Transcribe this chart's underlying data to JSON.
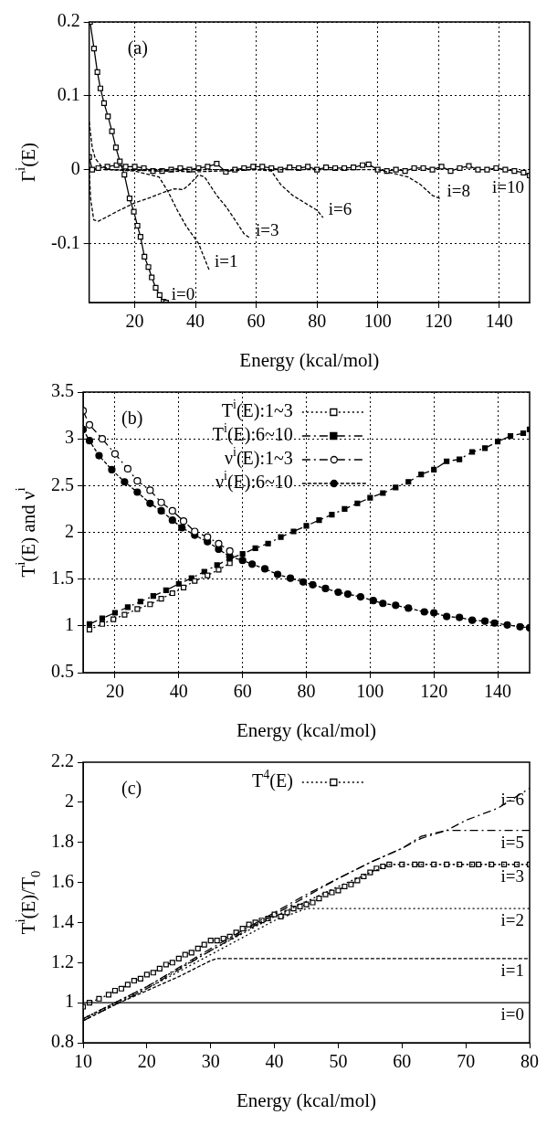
{
  "chart_data": [
    {
      "type": "line",
      "xlabel": "Energy (kcal/mol)",
      "ylabel": "Γ$^{i}$(E)",
      "xlim": [
        5,
        150
      ],
      "ylim": [
        -0.18,
        0.2
      ],
      "xticks": [
        20,
        40,
        60,
        80,
        100,
        120,
        140
      ],
      "yticks": [
        -0.1,
        0,
        0.1,
        0.2
      ],
      "grid": true,
      "annotations": [
        "(a)"
      ],
      "series": [
        {
          "name": "i=0",
          "color": "#000000",
          "marker": "square-open",
          "line_style": "solid",
          "x": [
            5.3,
            6.6,
            7.7,
            8.7,
            9.9,
            11.2,
            12.5,
            13.8,
            15.1,
            16.6,
            18.3,
            19.7,
            20.9,
            21.9,
            23.2,
            24.5,
            25.6,
            26.9,
            28.2,
            29.5,
            30.3
          ],
          "values": [
            0.2,
            0.164,
            0.132,
            0.11,
            0.09,
            0.072,
            0.052,
            0.03,
            0.011,
            -0.007,
            -0.039,
            -0.057,
            -0.076,
            -0.091,
            -0.118,
            -0.132,
            -0.146,
            -0.16,
            -0.17,
            -0.179,
            -0.18
          ]
        },
        {
          "name": "i=1",
          "color": "#000000",
          "marker": "none",
          "line_style": "dashed",
          "x": [
            5,
            6,
            7,
            9,
            12,
            20,
            28,
            31,
            34,
            37,
            41,
            44.5
          ],
          "values": [
            0.065,
            0.03,
            0.015,
            0.005,
            0,
            -0.002,
            -0.01,
            -0.03,
            -0.055,
            -0.077,
            -0.1,
            -0.136
          ]
        },
        {
          "name": "i=3",
          "color": "#000000",
          "marker": "none",
          "line_style": "dashed",
          "x": [
            5,
            5.5,
            6.5,
            8,
            15,
            20,
            25,
            30,
            33,
            36,
            38,
            41,
            43,
            47,
            50,
            53,
            56,
            58
          ],
          "values": [
            0,
            -0.04,
            -0.068,
            -0.07,
            -0.055,
            -0.045,
            -0.038,
            -0.03,
            -0.026,
            -0.027,
            -0.02,
            -0.007,
            -0.01,
            -0.035,
            -0.05,
            -0.068,
            -0.087,
            -0.093
          ]
        },
        {
          "name": "i=6",
          "color": "#000000",
          "marker": "none",
          "line_style": "dashed",
          "x": [
            10,
            40,
            60,
            65,
            68,
            72,
            76,
            80,
            82
          ],
          "values": [
            0,
            -0.003,
            0,
            -0.002,
            -0.02,
            -0.035,
            -0.045,
            -0.055,
            -0.065
          ]
        },
        {
          "name": "i=8",
          "color": "#000000",
          "marker": "none",
          "line_style": "dashed",
          "x": [
            10,
            100,
            105,
            110,
            114,
            118,
            121
          ],
          "values": [
            0,
            0,
            -0.005,
            -0.01,
            -0.02,
            -0.035,
            -0.04
          ]
        },
        {
          "name": "i=10",
          "color": "#000000",
          "marker": "square-open",
          "line_style": "solid",
          "x": [
            5,
            6,
            8,
            11,
            14,
            17,
            20,
            23,
            26,
            29,
            32,
            35,
            38,
            41,
            44,
            47,
            50,
            53,
            56,
            59,
            62,
            65,
            68,
            71,
            74,
            77,
            80,
            83,
            86,
            89,
            92,
            95,
            97,
            100,
            103,
            106,
            109,
            112,
            115,
            118,
            121,
            124,
            127,
            130,
            133,
            136,
            139,
            142,
            145,
            148,
            150
          ],
          "values": [
            0.017,
            0,
            0.002,
            0.004,
            0.006,
            0.004,
            0.004,
            0.002,
            -0.002,
            -0.002,
            0,
            0.002,
            0,
            0.002,
            0.004,
            0.008,
            -0.003,
            0,
            0.002,
            0.004,
            0.004,
            0.002,
            0,
            0.003,
            0.002,
            0.004,
            0,
            0.003,
            0.002,
            0.002,
            0.003,
            0.006,
            0.007,
            0,
            -0.002,
            0,
            -0.002,
            0.002,
            0.002,
            0,
            0.004,
            -0.002,
            0.002,
            0.005,
            0,
            0,
            0.002,
            0,
            -0.002,
            -0.004,
            -0.008
          ]
        }
      ]
    },
    {
      "type": "line",
      "xlabel": "Energy (kcal/mol)",
      "ylabel": "T$^{i}$(E) and ν$^{i}$",
      "xlim": [
        10,
        150
      ],
      "ylim": [
        0.5,
        3.5
      ],
      "xticks": [
        20,
        40,
        60,
        80,
        100,
        120,
        140
      ],
      "yticks": [
        0.5,
        1,
        1.5,
        2,
        2.5,
        3,
        3.5
      ],
      "grid": true,
      "legend": "top",
      "annotations": [
        "(b)"
      ],
      "series": [
        {
          "name": "T$^{i}$(E):1~3",
          "color": "#000000",
          "marker": "square-open",
          "line_style": "dotted",
          "x": [
            12,
            16,
            19.5,
            23,
            27,
            31,
            34.5,
            38,
            41.5,
            45,
            49,
            52.5,
            56
          ],
          "values": [
            0.96,
            1.02,
            1.07,
            1.12,
            1.18,
            1.23,
            1.29,
            1.35,
            1.41,
            1.48,
            1.54,
            1.6,
            1.67
          ]
        },
        {
          "name": "T$^{i}$(E):6~10",
          "color": "#000000",
          "marker": "square",
          "line_style": "dashdot",
          "x": [
            12,
            16,
            20,
            24,
            28,
            32,
            36,
            40,
            44,
            48,
            52,
            56,
            60,
            64,
            68,
            72,
            76,
            80,
            84,
            88,
            92,
            96,
            100,
            104,
            108,
            112,
            116,
            120,
            124,
            128,
            132,
            136,
            140,
            144,
            148,
            150
          ],
          "values": [
            1.02,
            1.08,
            1.14,
            1.2,
            1.26,
            1.32,
            1.38,
            1.45,
            1.51,
            1.58,
            1.65,
            1.72,
            1.77,
            1.83,
            1.88,
            1.95,
            2.01,
            2.07,
            2.13,
            2.19,
            2.25,
            2.31,
            2.37,
            2.42,
            2.48,
            2.54,
            2.62,
            2.67,
            2.76,
            2.78,
            2.86,
            2.9,
            2.97,
            3.03,
            3.06,
            3.1
          ]
        },
        {
          "name": "ν$^{i}$(E):1~3",
          "color": "#000000",
          "marker": "circle-open",
          "line_style": "dashdot",
          "x": [
            10,
            12,
            16,
            20,
            24,
            27,
            31,
            34.5,
            38,
            41.5,
            45,
            49,
            52.5,
            56
          ],
          "values": [
            3.3,
            3.15,
            3.0,
            2.84,
            2.68,
            2.55,
            2.45,
            2.32,
            2.23,
            2.12,
            2.01,
            1.95,
            1.88,
            1.8
          ]
        },
        {
          "name": "ν$^{i}$(E):6~10",
          "color": "#000000",
          "marker": "circle",
          "line_style": "dashed",
          "x": [
            10,
            12,
            15,
            19,
            23,
            27,
            31,
            34.5,
            38,
            41,
            45,
            49,
            52.5,
            56,
            60,
            63,
            67,
            71,
            75,
            79,
            82,
            86,
            90,
            93,
            97,
            101,
            104,
            108,
            112,
            117,
            120,
            124,
            128,
            132,
            136,
            139,
            143,
            147,
            150
          ],
          "values": [
            3.1,
            2.98,
            2.82,
            2.67,
            2.54,
            2.43,
            2.31,
            2.23,
            2.13,
            2.05,
            1.97,
            1.9,
            1.82,
            1.74,
            1.7,
            1.66,
            1.61,
            1.55,
            1.51,
            1.47,
            1.44,
            1.4,
            1.36,
            1.34,
            1.31,
            1.27,
            1.24,
            1.22,
            1.19,
            1.15,
            1.14,
            1.1,
            1.09,
            1.06,
            1.05,
            1.03,
            1.01,
            0.99,
            0.98
          ]
        }
      ]
    },
    {
      "type": "line",
      "xlabel": "Energy (kcal/mol)",
      "ylabel": "T$^{i}$(E)/T$_{0}$",
      "xlim": [
        10,
        80
      ],
      "ylim": [
        0.8,
        2.2
      ],
      "xticks": [
        10,
        20,
        30,
        40,
        50,
        60,
        70,
        80
      ],
      "yticks": [
        0.8,
        1,
        1.2,
        1.4,
        1.6,
        1.8,
        2,
        2.2
      ],
      "legend": "top",
      "annotations": [
        "(c)"
      ],
      "series": [
        {
          "name": "i=0",
          "color": "#000000",
          "marker": "none",
          "line_style": "solid",
          "x": [
            10,
            80
          ],
          "values": [
            1,
            1
          ]
        },
        {
          "name": "i=1",
          "color": "#000000",
          "marker": "none",
          "line_style": "dashed",
          "x": [
            10,
            15,
            20,
            25,
            30,
            31,
            80
          ],
          "values": [
            0.91,
            0.99,
            1.06,
            1.13,
            1.21,
            1.22,
            1.22
          ]
        },
        {
          "name": "i=2",
          "color": "#000000",
          "marker": "none",
          "line_style": "dotted",
          "x": [
            10,
            20,
            30,
            40,
            45,
            80
          ],
          "values": [
            0.92,
            1.07,
            1.24,
            1.41,
            1.47,
            1.47
          ]
        },
        {
          "name": "i=3",
          "color": "#000000",
          "marker": "none",
          "line_style": "dotted",
          "x": [
            10,
            20,
            30,
            40,
            50,
            58,
            80
          ],
          "values": [
            0.92,
            1.08,
            1.26,
            1.43,
            1.58,
            1.69,
            1.69
          ]
        },
        {
          "name": "i=5",
          "color": "#000000",
          "marker": "none",
          "line_style": "dashdot",
          "x": [
            10,
            20,
            30,
            40,
            45,
            50,
            55,
            60,
            63,
            67,
            80
          ],
          "values": [
            0.92,
            1.08,
            1.27,
            1.45,
            1.54,
            1.62,
            1.7,
            1.77,
            1.83,
            1.86,
            1.86
          ]
        },
        {
          "name": "i=6",
          "color": "#000000",
          "marker": "none",
          "line_style": "dashdot",
          "x": [
            10,
            20,
            30,
            40,
            45,
            50,
            55,
            60,
            63,
            67,
            70,
            75,
            80
          ],
          "values": [
            0.91,
            1.07,
            1.26,
            1.44,
            1.53,
            1.62,
            1.7,
            1.77,
            1.82,
            1.86,
            1.91,
            1.97,
            2.07
          ]
        },
        {
          "name": "T$^{4}$(E)",
          "color": "#000000",
          "marker": "square-open",
          "line_style": "dotted",
          "x": [
            10,
            11,
            12.5,
            14,
            15,
            16,
            17,
            18,
            19,
            20,
            21,
            22,
            23,
            24,
            25,
            26,
            27,
            28,
            29,
            30,
            31,
            32,
            33,
            34,
            35,
            36,
            37,
            38,
            39,
            40,
            41,
            42,
            43,
            44,
            45,
            46,
            47,
            48,
            49,
            50,
            51,
            52,
            53,
            54,
            55,
            56,
            57,
            58,
            60,
            62,
            63,
            65,
            67,
            69,
            71,
            72,
            74,
            76,
            78,
            80
          ],
          "values": [
            0.98,
            1.0,
            1.02,
            1.04,
            1.06,
            1.07,
            1.09,
            1.11,
            1.12,
            1.14,
            1.15,
            1.17,
            1.19,
            1.2,
            1.22,
            1.24,
            1.25,
            1.27,
            1.29,
            1.31,
            1.31,
            1.32,
            1.33,
            1.35,
            1.37,
            1.39,
            1.4,
            1.41,
            1.42,
            1.44,
            1.43,
            1.45,
            1.47,
            1.48,
            1.49,
            1.5,
            1.52,
            1.54,
            1.55,
            1.56,
            1.58,
            1.59,
            1.61,
            1.63,
            1.65,
            1.67,
            1.68,
            1.69,
            1.69,
            1.69,
            1.69,
            1.69,
            1.69,
            1.69,
            1.69,
            1.69,
            1.69,
            1.69,
            1.69,
            1.69
          ]
        }
      ]
    }
  ]
}
